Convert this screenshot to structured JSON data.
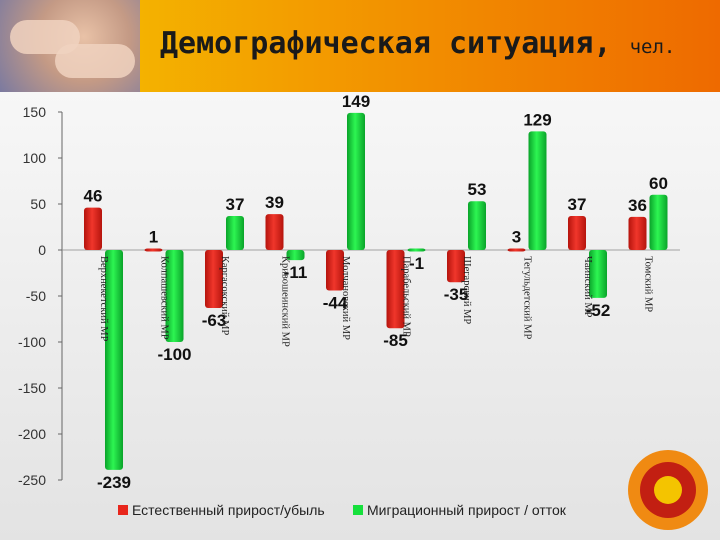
{
  "slide": {
    "title": "Демографическая ситуация,",
    "unit": "чел."
  },
  "chart_data": {
    "type": "bar",
    "categories": [
      "Верхнекетский МР",
      "Колпашевский МР",
      "Каргасокский МР",
      "Кривошеинский МР",
      "Молчановский МР",
      "Парабельский МР",
      "Шегарский МР",
      "Тегульдетский МР",
      "Чаинский МР",
      "Томский МР"
    ],
    "category_labels": [
      "Верхнекетский МР",
      "Колпашевский МР",
      "Каргасокский МР",
      "Кривошеинский МР",
      "Молчановский МР",
      "Парабельский МР",
      "Шегарский МР",
      "Тегульдетский МР",
      "Чаинский МР",
      "Томский МР"
    ],
    "series": [
      {
        "name": "Естественный прирост/убыль",
        "color": "#e8261c",
        "values": [
          46,
          1,
          -63,
          39,
          -44,
          -85,
          -35,
          3,
          37,
          36
        ]
      },
      {
        "name": "Миграционный прирост / отток",
        "color": "#16e03c",
        "values": [
          -239,
          -100,
          37,
          -11,
          149,
          -1,
          53,
          129,
          -52,
          60
        ]
      }
    ],
    "ylim": [
      -250,
      150
    ],
    "yticks": [
      150,
      100,
      50,
      0,
      -50,
      -100,
      -150,
      -200,
      -250
    ],
    "legend": "bottom",
    "grid": false
  }
}
